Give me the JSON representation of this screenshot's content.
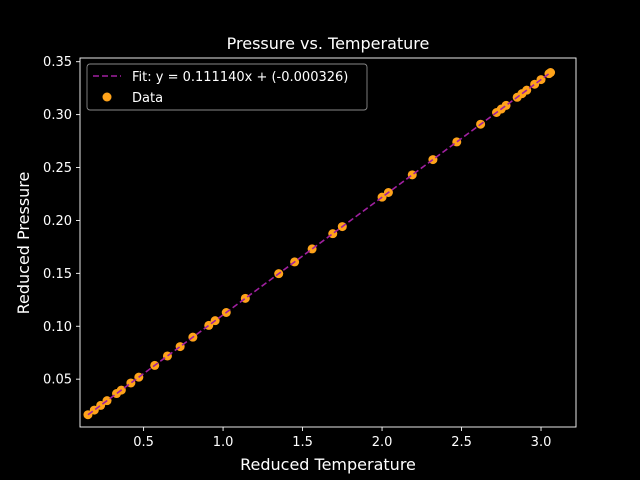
{
  "chart_data": {
    "type": "scatter",
    "title": "Pressure vs. Temperature",
    "xlabel": "Reduced Temperature",
    "ylabel": "Reduced Pressure",
    "xlim": [
      0.1,
      3.22
    ],
    "ylim": [
      0.0048,
      0.3535
    ],
    "xticks": [
      0.5,
      1.0,
      1.5,
      2.0,
      2.5,
      3.0
    ],
    "xtick_labels": [
      "0.5",
      "1.0",
      "1.5",
      "2.0",
      "2.5",
      "3.0"
    ],
    "yticks": [
      0.05,
      0.1,
      0.15,
      0.2,
      0.25,
      0.3,
      0.35
    ],
    "ytick_labels": [
      "0.05",
      "0.10",
      "0.15",
      "0.20",
      "0.25",
      "0.30",
      "0.35"
    ],
    "grid": false,
    "legend_position": "top-left",
    "fit": {
      "name": "Fit: y = 0.111140x + (-0.000326)",
      "slope": 0.11114,
      "intercept": -0.000326,
      "x_range": [
        0.15,
        3.06
      ],
      "color": "#a020a0",
      "style": "dashed"
    },
    "series": [
      {
        "name": "Data",
        "color": "#ffa31a",
        "x": [
          0.15,
          0.19,
          0.23,
          0.27,
          0.33,
          0.36,
          0.42,
          0.47,
          0.57,
          0.65,
          0.73,
          0.81,
          0.91,
          0.95,
          1.02,
          1.14,
          1.35,
          1.45,
          1.56,
          1.69,
          1.75,
          2.0,
          2.04,
          2.19,
          2.32,
          2.47,
          2.62,
          2.72,
          2.75,
          2.78,
          2.85,
          2.88,
          2.91,
          2.96,
          3.0,
          3.05,
          3.06
        ],
        "y": [
          0.0164,
          0.0208,
          0.0252,
          0.0297,
          0.0364,
          0.0397,
          0.0464,
          0.0519,
          0.063,
          0.0719,
          0.0808,
          0.0897,
          0.1008,
          0.1053,
          0.113,
          0.1264,
          0.1497,
          0.1608,
          0.1731,
          0.1875,
          0.1942,
          0.222,
          0.2264,
          0.2431,
          0.2575,
          0.2742,
          0.2909,
          0.302,
          0.3053,
          0.3087,
          0.3164,
          0.3198,
          0.3231,
          0.3287,
          0.3331,
          0.3387,
          0.3398
        ]
      }
    ]
  }
}
